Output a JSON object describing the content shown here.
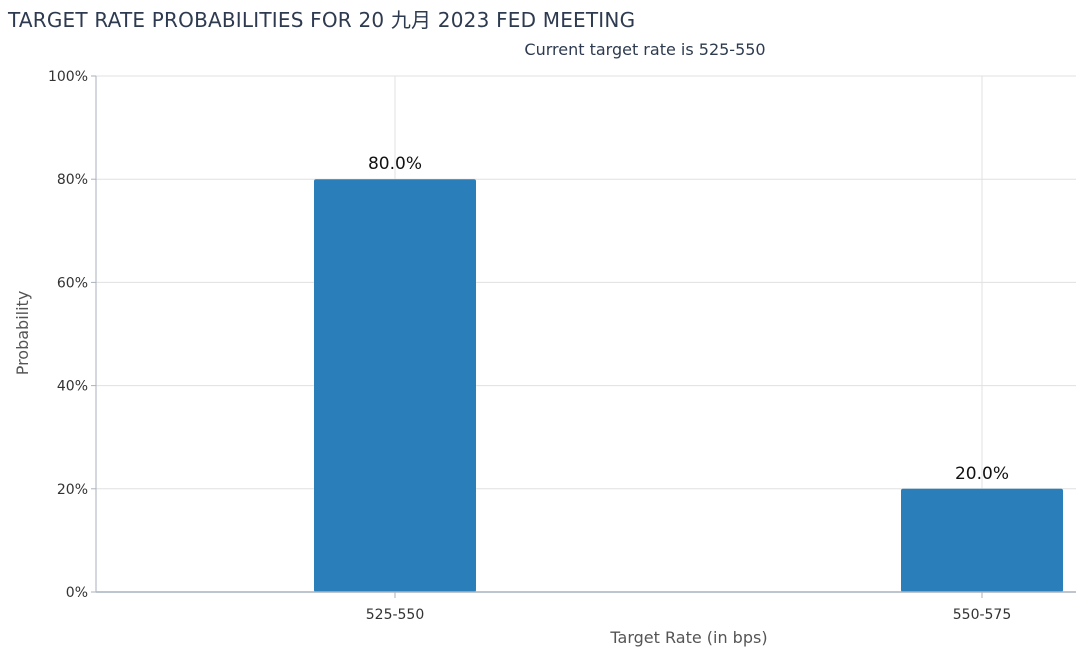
{
  "chart_data": {
    "type": "bar",
    "title": "TARGET RATE PROBABILITIES FOR 20 九月 2023 FED MEETING",
    "subtitle": "Current target rate is 525-550",
    "xlabel": "Target Rate (in bps)",
    "ylabel": "Probability",
    "categories": [
      "525-550",
      "550-575"
    ],
    "values": [
      80.0,
      20.0
    ],
    "data_labels": [
      "80.0%",
      "20.0%"
    ],
    "ylim": [
      0,
      100
    ],
    "yticks": [
      0,
      20,
      40,
      60,
      80,
      100
    ],
    "ytick_labels": [
      "0%",
      "20%",
      "40%",
      "60%",
      "80%",
      "100%"
    ],
    "grid": true,
    "legend": "none",
    "colors": {
      "bar": "#2a7fba",
      "grid": "#e0e0e0",
      "axis": "#aab2bd"
    }
  }
}
